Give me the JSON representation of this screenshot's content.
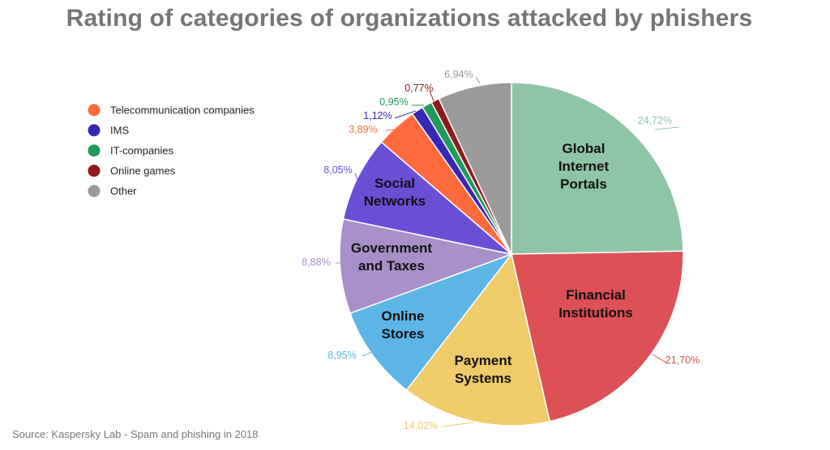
{
  "chart_data": {
    "type": "pie",
    "title": "Rating of categories of organizations attacked by phishers",
    "source": "Source: Kaspersky Lab - Spam and phishing in 2018",
    "legend_position": "left",
    "slices": [
      {
        "name": "Global Internet Portals",
        "label_lines": [
          "Global",
          "Internet",
          "Portals"
        ],
        "value": 24.72,
        "value_label": "24,72%",
        "color": "#8ec5a7"
      },
      {
        "name": "Financial Institutions",
        "label_lines": [
          "Financial",
          "Institutions"
        ],
        "value": 21.7,
        "value_label": "21,70%",
        "color": "#dd5055"
      },
      {
        "name": "Payment Systems",
        "label_lines": [
          "Payment",
          "Systems"
        ],
        "value": 14.02,
        "value_label": "14,02%",
        "color": "#f0cb6a"
      },
      {
        "name": "Online Stores",
        "label_lines": [
          "Online",
          "Stores"
        ],
        "value": 8.95,
        "value_label": "8,95%",
        "color": "#5db5e6"
      },
      {
        "name": "Government and Taxes",
        "label_lines": [
          "Government",
          "and Taxes"
        ],
        "value": 8.88,
        "value_label": "8,88%",
        "color": "#a98fc9"
      },
      {
        "name": "Social Networks",
        "label_lines": [
          "Social",
          "Networks"
        ],
        "value": 8.05,
        "value_label": "8,05%",
        "color": "#6a4fd6"
      },
      {
        "name": "Telecommunication companies",
        "label_lines": [],
        "value": 3.89,
        "value_label": "3,89%",
        "color": "#ff6a3d"
      },
      {
        "name": "IMS",
        "label_lines": [],
        "value": 1.12,
        "value_label": "1,12%",
        "color": "#3529b3"
      },
      {
        "name": "IT-companies",
        "label_lines": [],
        "value": 0.95,
        "value_label": "0,95%",
        "color": "#1f9a5b"
      },
      {
        "name": "Online games",
        "label_lines": [],
        "value": 0.77,
        "value_label": "0,77%",
        "color": "#8e1b1b"
      },
      {
        "name": "Other",
        "label_lines": [],
        "value": 6.94,
        "value_label": "6,94%",
        "color": "#9a9a9a"
      }
    ],
    "legend": [
      {
        "name": "Telecommunication companies",
        "color": "#ff6a3d"
      },
      {
        "name": "IMS",
        "color": "#3529b3"
      },
      {
        "name": "IT-companies",
        "color": "#1f9a5b"
      },
      {
        "name": "Online games",
        "color": "#8e1b1b"
      },
      {
        "name": "Other",
        "color": "#9a9a9a"
      }
    ]
  }
}
